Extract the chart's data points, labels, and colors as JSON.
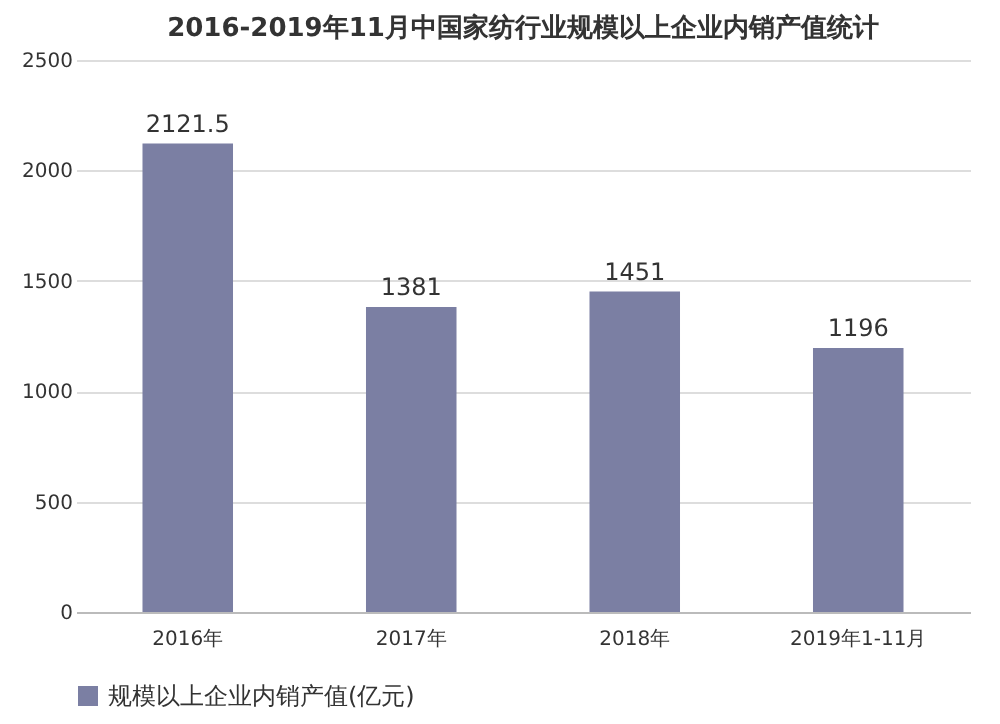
{
  "chart_data": {
    "type": "bar",
    "title": "2016-2019年11月中国家纺行业规模以上企业内销产值统计",
    "categories": [
      "2016年",
      "2017年",
      "2018年",
      "2019年1-11月"
    ],
    "series": [
      {
        "name": "规模以上企业内销产值(亿元)",
        "color": "#7b7fa3",
        "values": [
          2121.5,
          1381,
          1451,
          1196
        ]
      }
    ],
    "ylim": [
      0,
      2500
    ],
    "yticks": [
      0,
      500,
      1000,
      1500,
      2000,
      2500
    ],
    "grid": "y",
    "legend": "bottom",
    "data_labels": true
  }
}
